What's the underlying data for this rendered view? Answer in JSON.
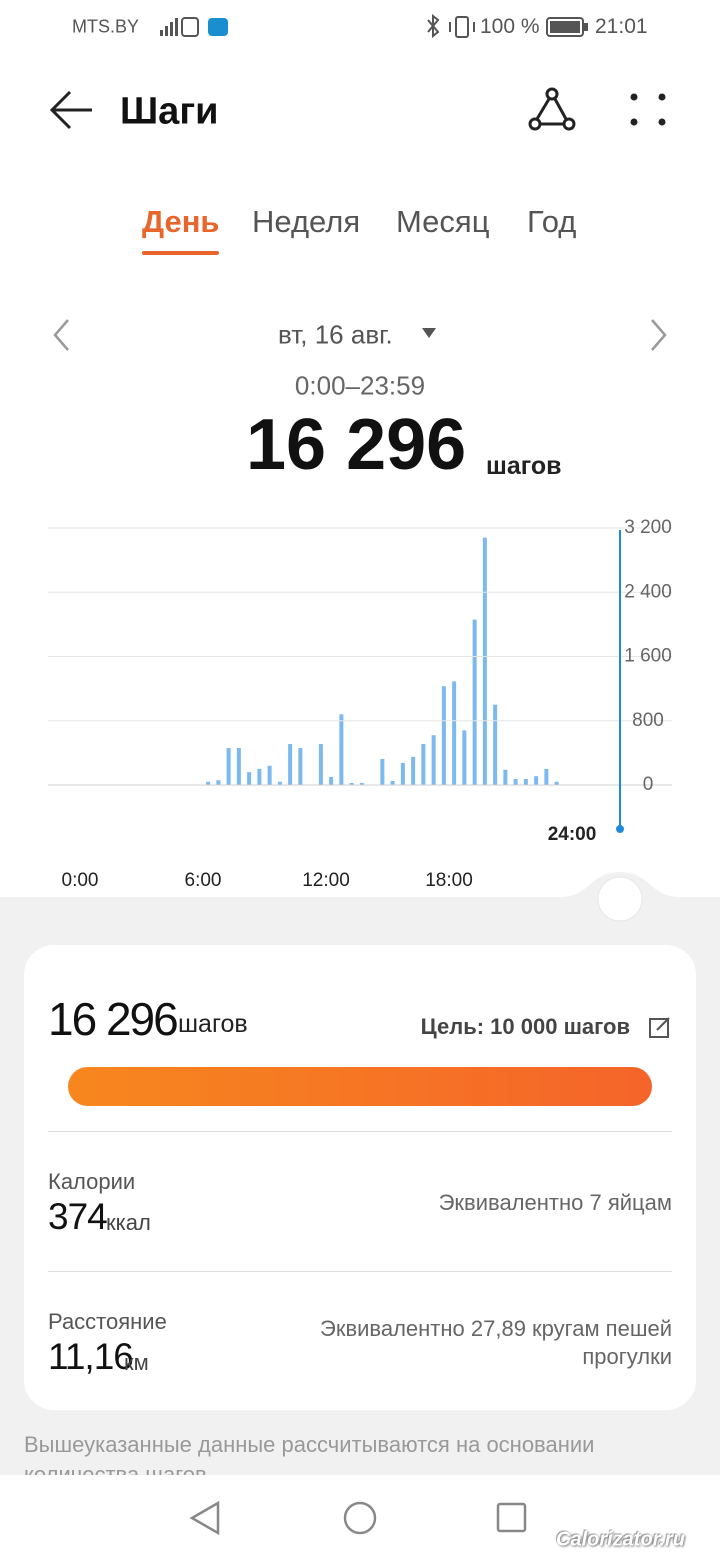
{
  "status_bar": {
    "carrier": "MTS.BY",
    "battery": "100 %",
    "time": "21:01"
  },
  "header": {
    "title": "Шаги"
  },
  "tabs": [
    "День",
    "Неделя",
    "Месяц",
    "Год"
  ],
  "date": "вт, 16 авг.",
  "time_range": "0:00–23:59",
  "total": {
    "value": "16 296",
    "unit": "шагов"
  },
  "chart_data": {
    "type": "bar",
    "x": [
      6.25,
      6.75,
      7.25,
      7.75,
      8.25,
      8.75,
      9.25,
      9.75,
      10.25,
      10.75,
      11.75,
      12.25,
      12.75,
      13.25,
      13.75,
      14.75,
      15.25,
      15.75,
      16.25,
      16.75,
      17.25,
      17.75,
      18.25,
      18.75,
      19.25,
      19.75,
      20.25,
      20.75,
      21.25,
      21.75,
      22.25,
      22.75,
      23.25
    ],
    "values": [
      40,
      60,
      460,
      460,
      160,
      200,
      240,
      40,
      510,
      460,
      510,
      100,
      880,
      25,
      25,
      325,
      50,
      275,
      350,
      510,
      620,
      1230,
      1290,
      680,
      2060,
      3080,
      1000,
      190,
      75,
      75,
      110,
      200,
      40
    ],
    "color": "#7cb9ee",
    "xlim": [
      0,
      24
    ],
    "xticks": [
      {
        "value": 0,
        "label": "0:00"
      },
      {
        "value": 6,
        "label": "6:00"
      },
      {
        "value": 12,
        "label": "12:00"
      },
      {
        "value": 18,
        "label": "18:00"
      }
    ],
    "ylim": [
      0,
      3200
    ],
    "yticks": [
      0,
      800,
      {
        "value": 1600,
        "label": "1 600"
      },
      {
        "value": 2400,
        "label": "2 400"
      },
      {
        "value": 3200,
        "label": "3 200"
      }
    ],
    "grid": true,
    "cursor_label": "24:00"
  },
  "summary": {
    "steps": "16 296",
    "steps_unit": "шагов",
    "goal": "Цель: 10 000 шагов",
    "calories_label": "Калории",
    "calories": "374",
    "calories_unit": "ккал",
    "calories_equivalent": "Эквивалентно 7 яйцам",
    "distance_label": "Расстояние",
    "distance": "11,16",
    "distance_unit": "км",
    "distance_equivalent": "Эквивалентно 27,89 кругам пешей прогулки"
  },
  "note": "Вышеуказанные данные рассчитываются на основании количества шагов",
  "watermark": "Calorizator.ru"
}
